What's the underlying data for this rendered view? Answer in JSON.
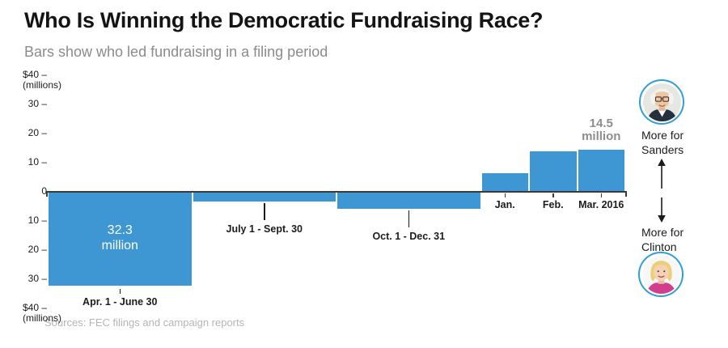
{
  "header": {
    "title": "Who Is Winning the Democratic Fundraising Race?",
    "subtitle": "Bars show who led fundraising in a filing period"
  },
  "source": {
    "text": "Sources: FEC filings and campaign reports"
  },
  "colors": {
    "bar": "#3e97d2",
    "axis": "#3a3a3a",
    "value_inside": "#ffffff",
    "value_above": "#8d8d8d",
    "avatar_ring": "#2e9fd8"
  },
  "chart_data": {
    "type": "bar",
    "title": "Who Is Winning the Democratic Fundraising Race?",
    "subtitle": "Bars show who led fundraising in a filing period",
    "unit": "$ millions",
    "orientation": "diverging-vertical",
    "ylim": [
      -40,
      40
    ],
    "grid": false,
    "positive_meaning": "More for Sanders",
    "negative_meaning": "More for Clinton",
    "yticks": [
      {
        "value": 40,
        "label": "$40 –",
        "sublabel": "(millions)"
      },
      {
        "value": 30,
        "label": "30 –"
      },
      {
        "value": 20,
        "label": "20 –"
      },
      {
        "value": 10,
        "label": "10 –"
      },
      {
        "value": 0,
        "label": "0"
      },
      {
        "value": -10,
        "label": "10 –"
      },
      {
        "value": -20,
        "label": "20 –"
      },
      {
        "value": -30,
        "label": "30 –"
      },
      {
        "value": -40,
        "label": "$40 –",
        "sublabel": "(millions)"
      }
    ],
    "bars": [
      {
        "period": "Apr. 1 - June 30",
        "start_month": 0,
        "months": 3,
        "value": -32.3,
        "leader": "Clinton",
        "value_label": "32.3 million",
        "value_label_pos": "inside",
        "period_label_style": "tick"
      },
      {
        "period": "July 1 - Sept. 30",
        "start_month": 3,
        "months": 3,
        "value": -3.2,
        "leader": "Clinton",
        "period_label_style": "leader"
      },
      {
        "period": "Oct. 1 - Dec. 31",
        "start_month": 6,
        "months": 3,
        "value": -5.8,
        "leader": "Clinton",
        "period_label_style": "leader"
      },
      {
        "period": "Jan.",
        "start_month": 9,
        "months": 1,
        "value": 6.4,
        "leader": "Sanders",
        "period_label_style": "axis"
      },
      {
        "period": "Feb.",
        "start_month": 10,
        "months": 1,
        "value": 13.9,
        "leader": "Sanders",
        "period_label_style": "axis"
      },
      {
        "period": "Mar. 2016",
        "start_month": 11,
        "months": 1,
        "value": 14.5,
        "leader": "Sanders",
        "value_label": "14.5 million",
        "value_label_pos": "above",
        "period_label_style": "axis"
      }
    ]
  },
  "annotations": {
    "sanders": {
      "line1": "More for",
      "line2": "Sanders"
    },
    "clinton": {
      "line1": "More for",
      "line2": "Clinton"
    }
  }
}
